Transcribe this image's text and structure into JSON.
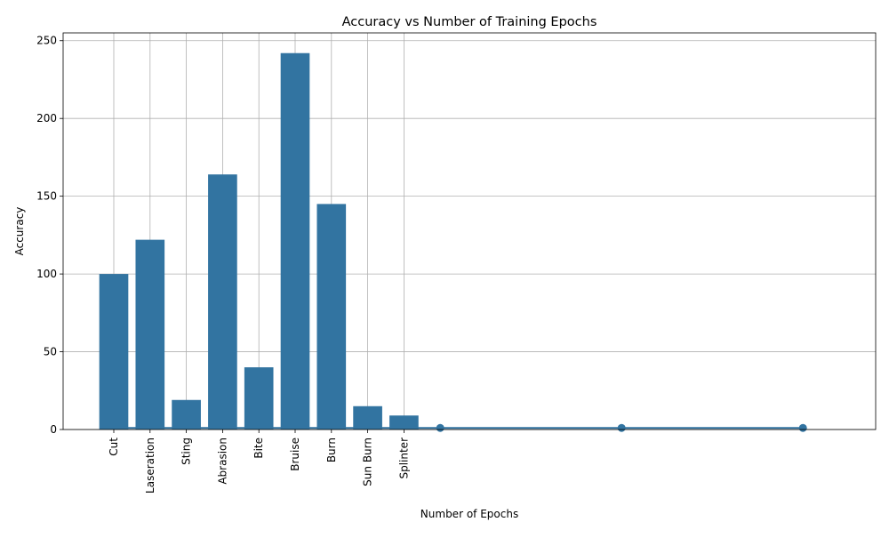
{
  "chart_data": {
    "type": "bar",
    "title": "Accuracy vs Number of Training Epochs",
    "xlabel": "Number of Epochs",
    "ylabel": "Accuracy",
    "categories": [
      "Cut",
      "Laseration",
      "Sting",
      "Abrasion",
      "Bite",
      "Bruise",
      "Burn",
      "Sun Burn",
      "Splinter"
    ],
    "values": [
      100,
      122,
      19,
      164,
      40,
      242,
      145,
      15,
      9
    ],
    "yticks": [
      "0",
      "50",
      "100",
      "150",
      "200",
      "250"
    ],
    "ylim": [
      0,
      255
    ],
    "line": {
      "x": [
        0,
        1,
        2,
        3,
        4,
        5,
        6,
        7,
        8,
        9,
        14,
        19
      ],
      "y": [
        1,
        1,
        1,
        1,
        1,
        1,
        1,
        1,
        1,
        1,
        1,
        1
      ],
      "marker_x": [
        9,
        14,
        19
      ]
    },
    "grid": true,
    "colors": {
      "bar": "#3274a1",
      "line": "#3274a1",
      "grid": "#b0b0b0"
    }
  }
}
